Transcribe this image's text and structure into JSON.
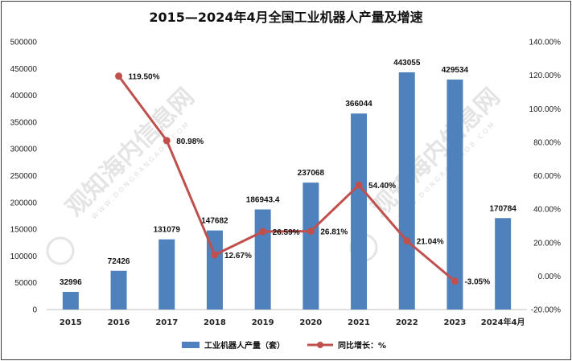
{
  "chart_data": {
    "type": "bar",
    "title": "2015—2024年4月全国工业机器人产量及增速",
    "categories": [
      "2015",
      "2016",
      "2017",
      "2018",
      "2019",
      "2020",
      "2021",
      "2022",
      "2023",
      "2024年4月"
    ],
    "series": [
      {
        "name": "工业机器人产量（套）",
        "type": "bar",
        "axis": "left",
        "color": "#4f81bd",
        "values": [
          32996,
          72426,
          131079,
          147682,
          186943.4,
          237068,
          366044,
          443055,
          429534,
          170784
        ],
        "labels": [
          "32996",
          "72426",
          "131079",
          "147682",
          "186943.4",
          "237068",
          "366044",
          "443055",
          "429534",
          "170784"
        ]
      },
      {
        "name": "同比增长：%",
        "type": "line",
        "axis": "right",
        "color": "#c0504d",
        "values": [
          null,
          119.5,
          80.98,
          12.67,
          26.59,
          26.81,
          54.4,
          21.04,
          -3.05,
          null
        ],
        "labels": [
          "",
          "119.50%",
          "80.98%",
          "12.67%",
          "26.59%",
          "26.81%",
          "54.40%",
          "21.04%",
          "-3.05%",
          ""
        ]
      }
    ],
    "ylim_left": [
      0,
      500000
    ],
    "left_ticks": [
      "0",
      "50000",
      "100000",
      "150000",
      "200000",
      "250000",
      "300000",
      "350000",
      "400000",
      "450000",
      "500000"
    ],
    "ylim_right": [
      -20,
      140
    ],
    "right_ticks": [
      "-20.00%",
      "0.00%",
      "20.00%",
      "40.00%",
      "60.00%",
      "80.00%",
      "100.00%",
      "120.00%",
      "140.00%"
    ],
    "grid": false,
    "legend": "bottom",
    "watermark": {
      "text": "观知海内信息网",
      "subtext": "WWW.DONGRANGAOB.COM",
      "color": "#cfcfcf"
    }
  }
}
